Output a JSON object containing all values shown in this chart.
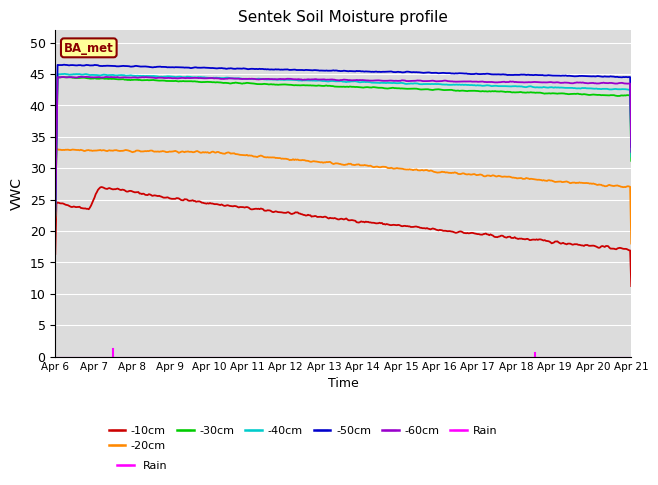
{
  "title": "Sentek Soil Moisture profile",
  "xlabel": "Time",
  "ylabel": "VWC",
  "annotation": "BA_met",
  "ylim": [
    0,
    52
  ],
  "yticks": [
    0,
    5,
    10,
    15,
    20,
    25,
    30,
    35,
    40,
    45,
    50
  ],
  "x_labels": [
    "Apr 6",
    "Apr 7",
    "Apr 8",
    "Apr 9",
    "Apr 10",
    "Apr 11",
    "Apr 12",
    "Apr 13",
    "Apr 14",
    "Apr 15",
    "Apr 16",
    "Apr 17",
    "Apr 18",
    "Apr 19",
    "Apr 20",
    "Apr 21"
  ],
  "n_points": 500,
  "series": {
    "10cm": {
      "color": "#cc0000",
      "label": "-10cm"
    },
    "20cm": {
      "color": "#ff8800",
      "label": "-20cm"
    },
    "30cm": {
      "color": "#00cc00",
      "label": "-30cm"
    },
    "40cm": {
      "color": "#00cccc",
      "label": "-40cm"
    },
    "50cm": {
      "color": "#0000cc",
      "label": "-50cm"
    },
    "60cm": {
      "color": "#9900cc",
      "label": "-60cm"
    }
  },
  "rain_color": "#ff00ff",
  "background_color": "#dcdcdc",
  "grid_color": "#ffffff",
  "fig_background": "#ffffff",
  "legend_entries": [
    "-10cm",
    "-20cm",
    "-30cm",
    "-40cm",
    "-50cm",
    "-60cm",
    "Rain"
  ],
  "legend_colors": [
    "#cc0000",
    "#ff8800",
    "#00cc00",
    "#00cccc",
    "#0000cc",
    "#9900cc",
    "#ff00ff"
  ]
}
